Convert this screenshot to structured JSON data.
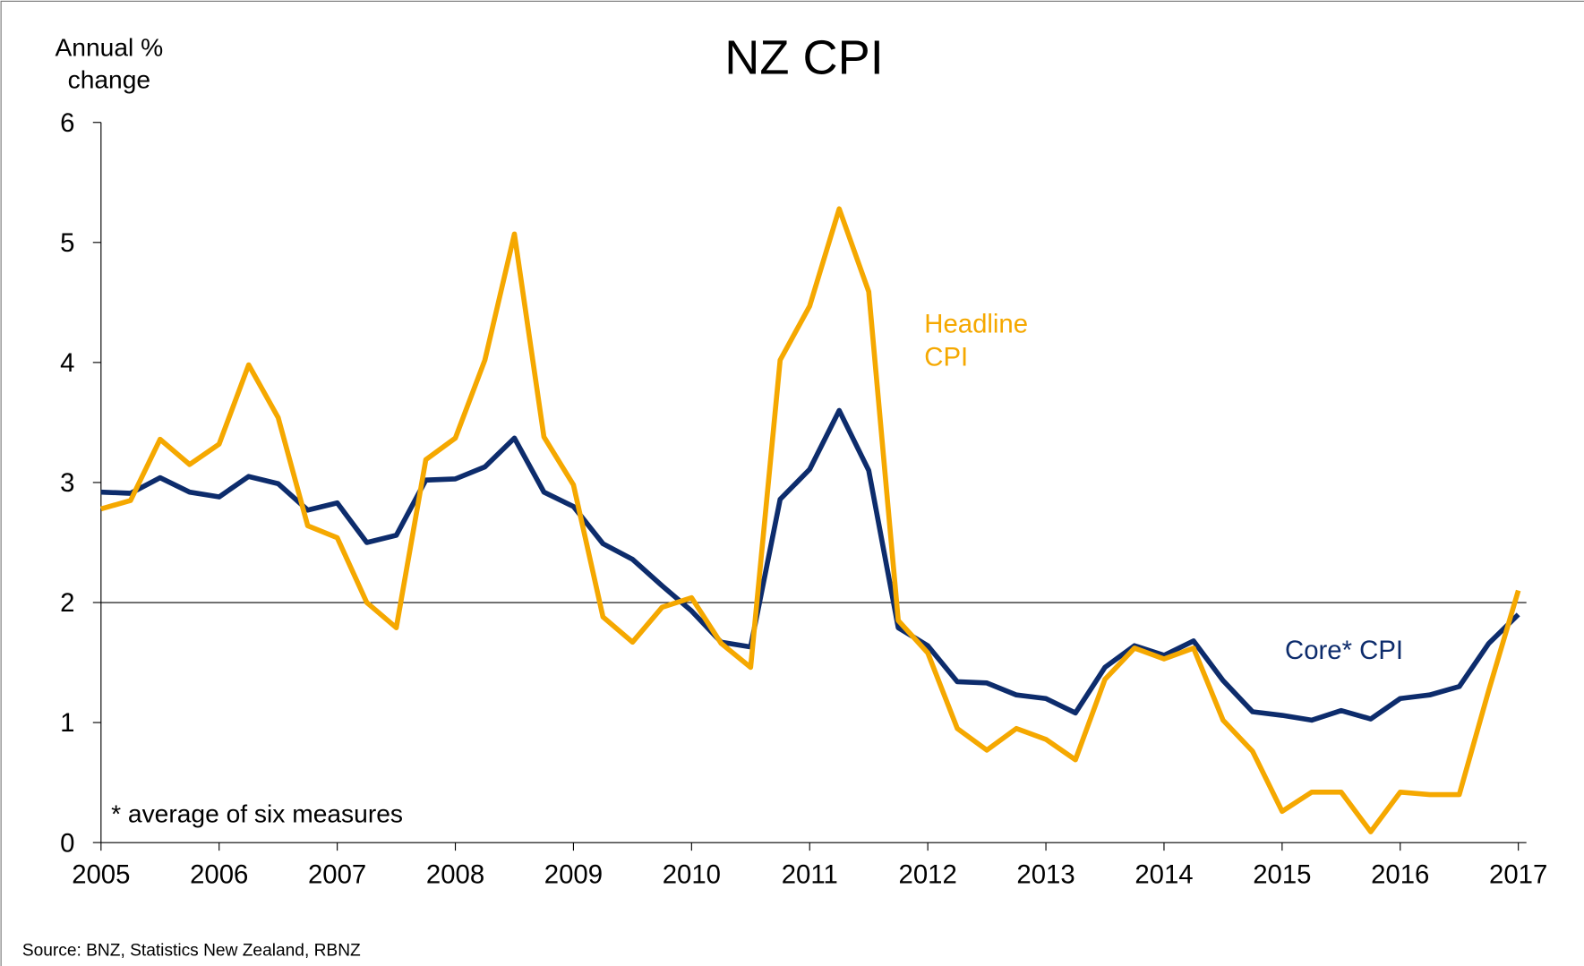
{
  "chart_data": {
    "type": "line",
    "title": "NZ CPI",
    "y_label": [
      "Annual %",
      "change"
    ],
    "x": [
      2005,
      2005.25,
      2005.5,
      2005.75,
      2006,
      2006.25,
      2006.5,
      2006.75,
      2007,
      2007.25,
      2007.5,
      2007.75,
      2008,
      2008.25,
      2008.5,
      2008.75,
      2009,
      2009.25,
      2009.5,
      2009.75,
      2010,
      2010.25,
      2010.5,
      2010.75,
      2011,
      2011.25,
      2011.5,
      2011.75,
      2012,
      2012.25,
      2012.5,
      2012.75,
      2013,
      2013.25,
      2013.5,
      2013.75,
      2014,
      2014.25,
      2014.5,
      2014.75,
      2015,
      2015.25,
      2015.5,
      2015.75,
      2016,
      2016.25,
      2016.5,
      2016.75,
      2017
    ],
    "series": [
      {
        "name": [
          "Headline",
          "CPI"
        ],
        "color": "#f5a800",
        "values": [
          2.78,
          2.85,
          3.36,
          3.15,
          3.32,
          3.98,
          3.54,
          2.64,
          2.54,
          2.0,
          1.79,
          3.19,
          3.37,
          4.02,
          5.07,
          3.38,
          2.98,
          1.88,
          1.67,
          1.96,
          2.04,
          1.66,
          1.46,
          4.02,
          4.47,
          5.28,
          4.59,
          1.85,
          1.58,
          0.95,
          0.77,
          0.95,
          0.86,
          0.69,
          1.36,
          1.62,
          1.53,
          1.62,
          1.02,
          0.76,
          0.26,
          0.42,
          0.42,
          0.09,
          0.42,
          0.4,
          0.4,
          1.27,
          2.1
        ]
      },
      {
        "name": "Core* CPI",
        "color": "#0d2c6c",
        "values": [
          2.92,
          2.91,
          3.04,
          2.92,
          2.88,
          3.05,
          2.99,
          2.77,
          2.83,
          2.5,
          2.56,
          3.02,
          3.03,
          3.13,
          3.37,
          2.92,
          2.8,
          2.49,
          2.36,
          2.14,
          1.93,
          1.67,
          1.63,
          2.86,
          3.11,
          3.6,
          3.1,
          1.79,
          1.64,
          1.34,
          1.33,
          1.23,
          1.2,
          1.08,
          1.46,
          1.64,
          1.56,
          1.68,
          1.35,
          1.09,
          1.06,
          1.02,
          1.1,
          1.03,
          1.2,
          1.23,
          1.3,
          1.66,
          1.9
        ]
      }
    ],
    "reference_line": 2,
    "xlim": [
      2005,
      2017
    ],
    "xticks": [
      2005,
      2006,
      2007,
      2008,
      2009,
      2010,
      2011,
      2012,
      2013,
      2014,
      2015,
      2016,
      2017
    ],
    "ylim": [
      0,
      6
    ],
    "yticks": [
      0,
      1,
      2,
      3,
      4,
      5,
      6
    ],
    "annotation": "* average of six measures",
    "source": "Source: BNZ, Statistics New Zealand, RBNZ"
  }
}
